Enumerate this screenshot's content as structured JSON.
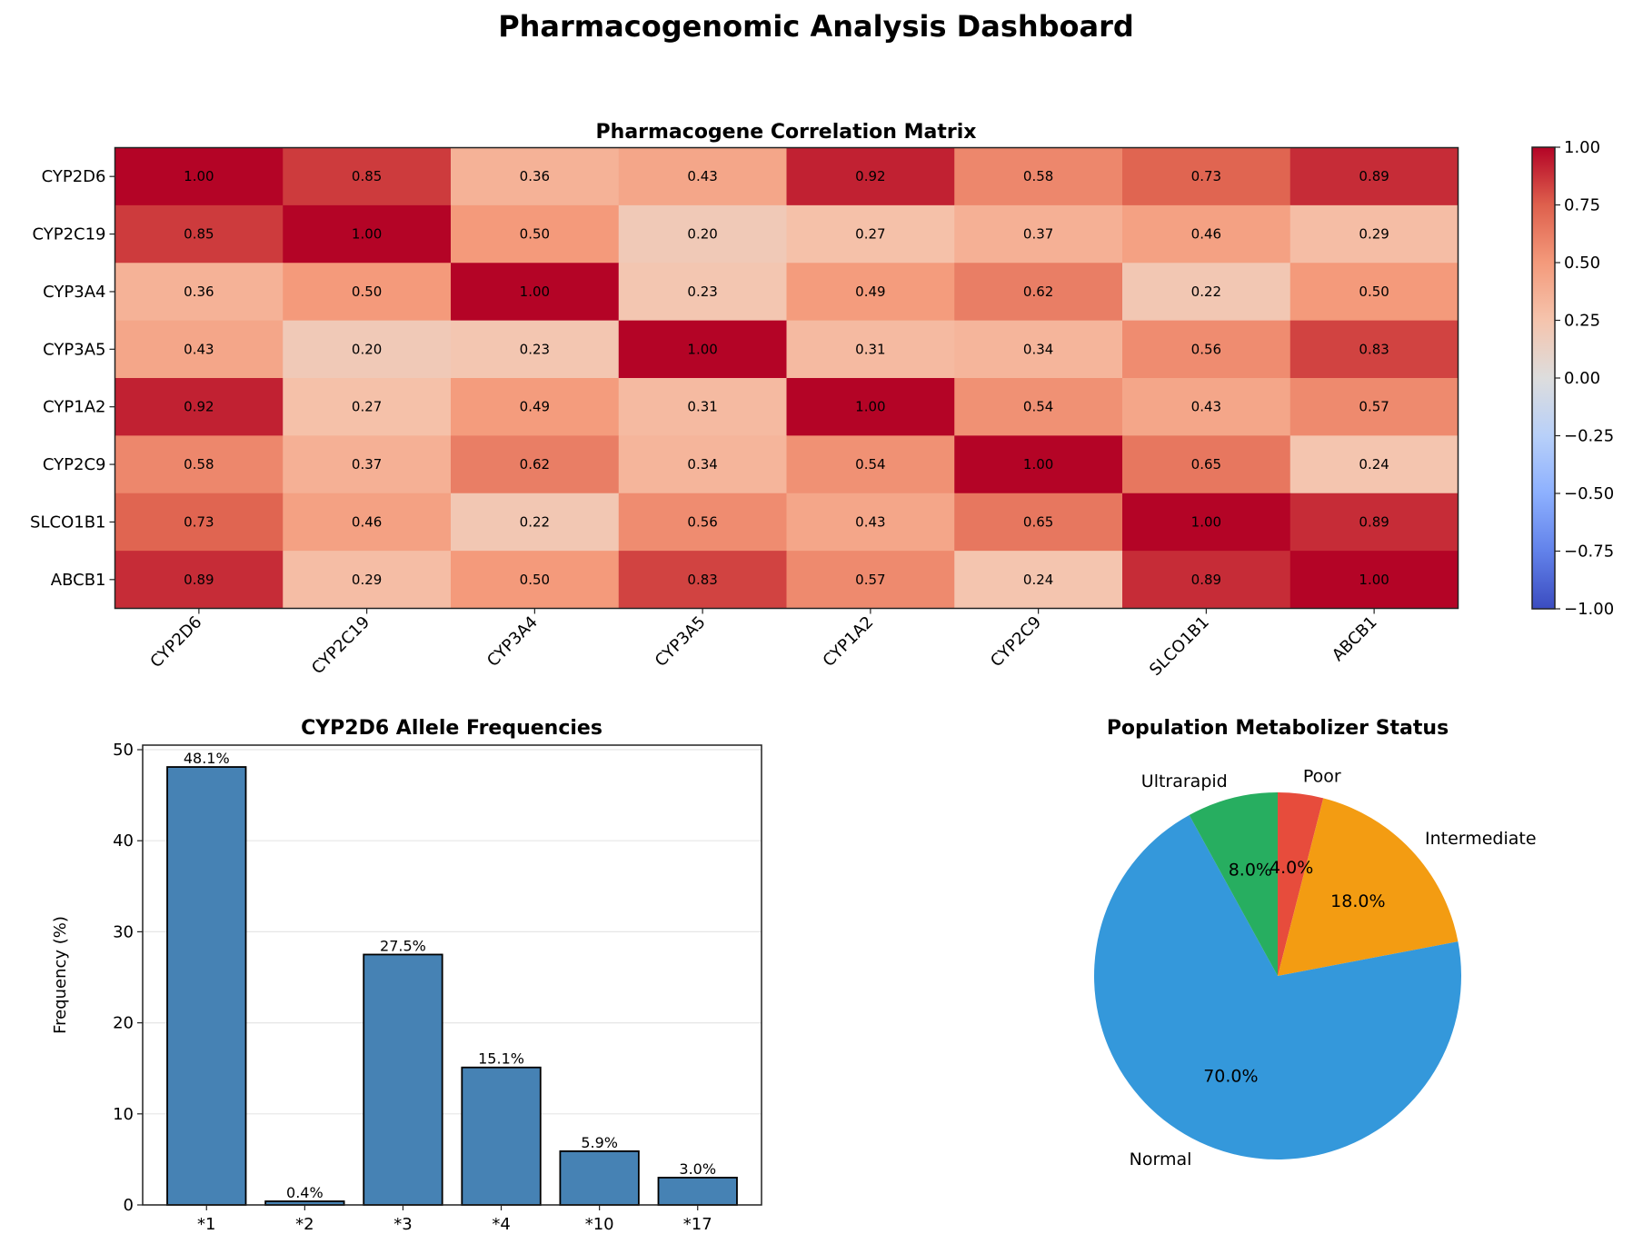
{
  "figure": {
    "title": "Pharmacogenomic Analysis Dashboard"
  },
  "chart_data": [
    {
      "type": "heatmap",
      "title": "Pharmacogene Correlation Matrix",
      "rows": [
        "CYP2D6",
        "CYP2C19",
        "CYP3A4",
        "CYP3A5",
        "CYP1A2",
        "CYP2C9",
        "SLCO1B1",
        "ABCB1"
      ],
      "columns": [
        "CYP2D6",
        "CYP2C19",
        "CYP3A4",
        "CYP3A5",
        "CYP1A2",
        "CYP2C9",
        "SLCO1B1",
        "ABCB1"
      ],
      "values": [
        [
          1.0,
          0.85,
          0.36,
          0.43,
          0.92,
          0.58,
          0.73,
          0.89
        ],
        [
          0.85,
          1.0,
          0.5,
          0.2,
          0.27,
          0.37,
          0.46,
          0.29
        ],
        [
          0.36,
          0.5,
          1.0,
          0.23,
          0.49,
          0.62,
          0.22,
          0.5
        ],
        [
          0.43,
          0.2,
          0.23,
          1.0,
          0.31,
          0.34,
          0.56,
          0.83
        ],
        [
          0.92,
          0.27,
          0.49,
          0.31,
          1.0,
          0.54,
          0.43,
          0.57
        ],
        [
          0.58,
          0.37,
          0.62,
          0.34,
          0.54,
          1.0,
          0.65,
          0.24
        ],
        [
          0.73,
          0.46,
          0.22,
          0.56,
          0.43,
          0.65,
          1.0,
          0.89
        ],
        [
          0.89,
          0.29,
          0.5,
          0.83,
          0.57,
          0.24,
          0.89,
          1.0
        ]
      ],
      "colormap": "coolwarm",
      "vmin": -1.0,
      "vmax": 1.0,
      "colorbar_ticks": [
        "1.00",
        "0.75",
        "0.50",
        "0.25",
        "0.00",
        "−0.25",
        "−0.50",
        "−0.75",
        "−1.00"
      ],
      "colorbar_tick_values": [
        1.0,
        0.75,
        0.5,
        0.25,
        0.0,
        -0.25,
        -0.5,
        -0.75,
        -1.0
      ],
      "xtick_rotation_deg": 45
    },
    {
      "type": "bar",
      "title": "CYP2D6 Allele Frequencies",
      "categories": [
        "*1",
        "*2",
        "*3",
        "*4",
        "*10",
        "*17"
      ],
      "values": [
        48.1,
        0.4,
        27.5,
        15.1,
        5.9,
        3.0
      ],
      "value_labels": [
        "48.1%",
        "0.4%",
        "27.5%",
        "15.1%",
        "5.9%",
        "3.0%"
      ],
      "xlabel": "",
      "ylabel": "Frequency (%)",
      "ylim": [
        0,
        50.5
      ],
      "yticks": [
        0,
        10,
        20,
        30,
        40,
        50
      ],
      "grid": "y",
      "bar_color": "#4682b4",
      "edge_color": "#000000"
    },
    {
      "type": "pie",
      "title": "Population Metabolizer Status",
      "labels": [
        "Poor",
        "Intermediate",
        "Normal",
        "Ultrarapid"
      ],
      "values": [
        4.0,
        18.0,
        70.0,
        8.0
      ],
      "pct_labels": [
        "4.0%",
        "18.0%",
        "70.0%",
        "8.0%"
      ],
      "colors": [
        "#e74c3c",
        "#f39c12",
        "#3498db",
        "#27ae60"
      ],
      "start_angle_deg": 90,
      "direction": "clockwise"
    }
  ]
}
